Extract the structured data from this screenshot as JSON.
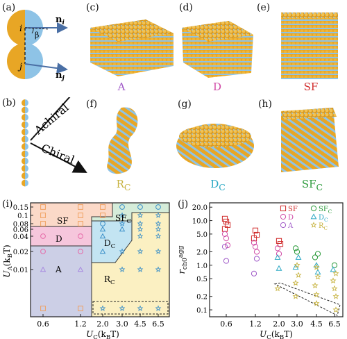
{
  "panels": {
    "a": "(a)",
    "b": "(b)",
    "c": "(c)",
    "d": "(d)",
    "e": "(e)",
    "f": "(f)",
    "g": "(g)",
    "h": "(h)",
    "i": "(i)",
    "j": "(j)"
  },
  "dimer": {
    "ni": "n",
    "ni_sub": "i",
    "nj": "n",
    "nj_sub": "j",
    "i": "i",
    "j": "j",
    "beta": "β"
  },
  "arrows": {
    "achiral": "Achiral",
    "chiral": "Chiral"
  },
  "phases": {
    "c": {
      "main": "A",
      "sub": "",
      "color": "#a05ac8"
    },
    "d": {
      "main": "D",
      "sub": "",
      "color": "#d04aa6"
    },
    "e": {
      "main": "SF",
      "sub": "",
      "color": "#d02a2a"
    },
    "f": {
      "main": "R",
      "sub": "C",
      "color": "#c7b340"
    },
    "g": {
      "main": "D",
      "sub": "C",
      "color": "#2aa8c4"
    },
    "h": {
      "main": "SF",
      "sub": "C",
      "color": "#2a9a3a"
    }
  },
  "colors": {
    "gold": "#e8a625",
    "blue": "#8ec3e6"
  },
  "chart_data": [
    {
      "type": "scatter",
      "panel": "i",
      "xlabel_main": "U",
      "xlabel_sub": "C",
      "xlabel_rest": "(k",
      "xlabel_sub2": "B",
      "xlabel_end": "T)",
      "ylabel_main": "U",
      "ylabel_sub": "A",
      "ylabel_rest": "(k",
      "ylabel_sub2": "B",
      "ylabel_end": "T)",
      "xticks": [
        "0.6",
        "1.2",
        "2.0",
        "3.0",
        "4.5",
        "6.5"
      ],
      "yticks": [
        "0.15",
        "0.1",
        "0.08",
        "0.06",
        "0.04",
        "0.02",
        "0.01"
      ],
      "regions": [
        {
          "label": "SF",
          "sub": "",
          "color": "#fbd9c8"
        },
        {
          "label": "D",
          "sub": "",
          "color": "#f6c6dc"
        },
        {
          "label": "A",
          "sub": "",
          "color": "#cccfe6"
        },
        {
          "label": "SF",
          "sub": "C",
          "color": "#d5ecd9"
        },
        {
          "label": "D",
          "sub": "C",
          "color": "#c3e4f2"
        },
        {
          "label": "R",
          "sub": "C",
          "color": "#fbf0c2"
        }
      ]
    },
    {
      "type": "scatter",
      "panel": "j",
      "xlabel_main": "U",
      "xlabel_sub": "C",
      "xlabel_rest": "(k",
      "xlabel_sub2": "B",
      "xlabel_end": "T)",
      "ylabel_main": "r",
      "ylabel_sub": "ch0",
      "ylabel_sup": "agg",
      "xticks": [
        "0.6",
        "1.2",
        "2.0",
        "3.0",
        "4.5",
        "6.5"
      ],
      "yticks": [
        "20.0",
        "10.0",
        "5.0",
        "2.0",
        "1.0",
        "0.5",
        "0.2",
        "0.1"
      ],
      "legend": [
        {
          "label": "SF",
          "sub": "",
          "color": "#d02a2a",
          "marker": "square"
        },
        {
          "label": "D",
          "sub": "",
          "color": "#d04aa6",
          "marker": "circle"
        },
        {
          "label": "A",
          "sub": "",
          "color": "#a05ac8",
          "marker": "circle"
        },
        {
          "label": "SF",
          "sub": "C",
          "color": "#2a9a3a",
          "marker": "circle"
        },
        {
          "label": "D",
          "sub": "C",
          "color": "#2aa8c4",
          "marker": "triangle"
        },
        {
          "label": "R",
          "sub": "C",
          "color": "#c7b340",
          "marker": "star"
        }
      ],
      "series": [
        {
          "name": "SF",
          "x": [
            0.6,
            0.6,
            0.6,
            0.6,
            1.2,
            1.2,
            1.2,
            2.0,
            2.0
          ],
          "y": [
            11,
            9.5,
            8,
            6.5,
            6,
            4.8,
            4,
            3.5,
            3.0
          ]
        },
        {
          "name": "D",
          "x": [
            0.6,
            0.6,
            0.6,
            1.2,
            1.2,
            1.2,
            2.0,
            2.0
          ],
          "y": [
            5,
            4,
            2.8,
            3.2,
            2.6,
            2.0,
            2.4,
            1.8
          ]
        },
        {
          "name": "A",
          "x": [
            0.6,
            0.6,
            1.2,
            1.2
          ],
          "y": [
            2.6,
            1.25,
            1.4,
            0.65
          ]
        },
        {
          "name": "SFC",
          "x": [
            3.0,
            3.0,
            4.5,
            4.5,
            6.5
          ],
          "y": [
            2.4,
            2.0,
            1.8,
            1.5,
            1.0
          ]
        },
        {
          "name": "DC",
          "x": [
            2.0,
            2.0,
            3.0,
            3.0,
            4.5,
            4.5,
            6.5
          ],
          "y": [
            1.5,
            0.85,
            1.5,
            0.9,
            1.0,
            0.7,
            0.8
          ]
        },
        {
          "name": "RC",
          "x": [
            2.0,
            3.0,
            3.0,
            3.0,
            4.5,
            4.5,
            4.5,
            4.5,
            6.5,
            6.5,
            6.5,
            6.5,
            3.0,
            4.5,
            6.5
          ],
          "y": [
            0.3,
            1.0,
            0.6,
            0.4,
            0.9,
            0.55,
            0.35,
            0.22,
            0.65,
            0.45,
            0.3,
            0.2,
            0.2,
            0.14,
            0.1
          ]
        }
      ]
    }
  ]
}
